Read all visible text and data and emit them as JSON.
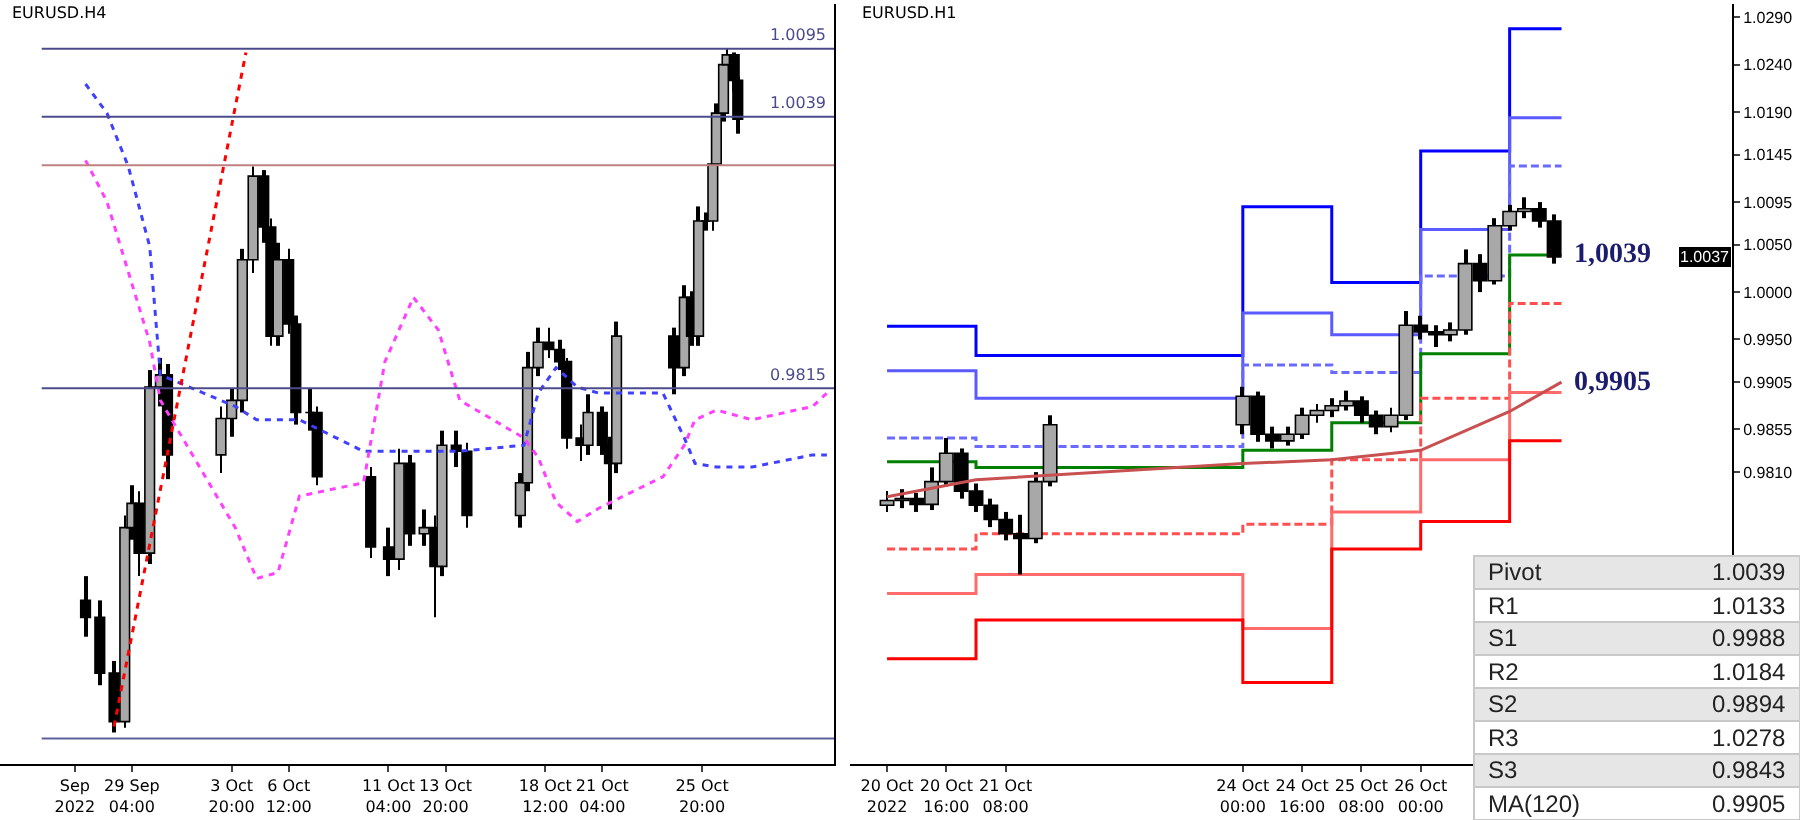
{
  "chart_data": [
    {
      "type": "candlestick",
      "title": "EURUSD.H4",
      "tick_labels": "x",
      "x": [
        "2022-09-27T00:00",
        "2022-09-27T16:00",
        "2022-09-28T08:00",
        "2022-09-28T20:00",
        "2022-09-29T04:00",
        "2022-09-29T12:00",
        "2022-09-30T00:00",
        "2022-09-30T12:00",
        "2022-09-30T20:00",
        "2022-10-03T08:00",
        "2022-10-03T20:00",
        "2022-10-04T08:00",
        "2022-10-04T20:00",
        "2022-10-05T08:00",
        "2022-10-05T16:00",
        "2022-10-06T00:00",
        "2022-10-06T12:00",
        "2022-10-06T20:00",
        "2022-10-07T12:00",
        "2022-10-07T20:00",
        "2022-10-10T08:00",
        "2022-10-11T04:00",
        "2022-10-11T16:00",
        "2022-10-12T04:00",
        "2022-10-12T20:00",
        "2022-10-13T08:00",
        "2022-10-13T16:00",
        "2022-10-14T08:00",
        "2022-10-14T20:00",
        "2022-10-17T08:00",
        "2022-10-17T16:00",
        "2022-10-18T04:00",
        "2022-10-18T16:00",
        "2022-10-19T04:00",
        "2022-10-19T12:00",
        "2022-10-20T04:00",
        "2022-10-20T12:00",
        "2022-10-21T04:00",
        "2022-10-21T12:00",
        "2022-10-21T20:00",
        "2022-10-24T12:00",
        "2022-10-25T00:00",
        "2022-10-25T08:00",
        "2022-10-25T16:00",
        "2022-10-26T00:00",
        "2022-10-26T08:00",
        "2022-10-26T12:00",
        "2022-10-26T20:00",
        "2022-10-27T00:00",
        "2022-10-27T08:00",
        "2022-10-27T12:00"
      ],
      "ohlc": [
        [
          0.964,
          0.966,
          0.961,
          0.9626
        ],
        [
          0.9626,
          0.964,
          0.957,
          0.958
        ],
        [
          0.958,
          0.959,
          0.9531,
          0.954
        ],
        [
          0.954,
          0.971,
          0.9535,
          0.97
        ],
        [
          0.97,
          0.9735,
          0.969,
          0.972
        ],
        [
          0.972,
          0.973,
          0.966,
          0.9679
        ],
        [
          0.9679,
          0.983,
          0.967,
          0.9816
        ],
        [
          0.9816,
          0.984,
          0.98,
          0.9826
        ],
        [
          0.9826,
          0.9835,
          0.974,
          0.976
        ],
        [
          0.976,
          0.98,
          0.9745,
          0.979
        ],
        [
          0.979,
          0.9815,
          0.9775,
          0.9805
        ],
        [
          0.9805,
          0.993,
          0.9795,
          0.9921
        ],
        [
          0.9921,
          0.9998,
          0.991,
          0.999
        ],
        [
          0.999,
          0.9995,
          0.9935,
          0.9948
        ],
        [
          0.9948,
          0.9955,
          0.985,
          0.9858
        ],
        [
          0.9858,
          0.9935,
          0.985,
          0.9921
        ],
        [
          0.9921,
          0.993,
          0.986,
          0.9868
        ],
        [
          0.9868,
          0.9875,
          0.9785,
          0.9795
        ],
        [
          0.9795,
          0.9815,
          0.978,
          0.9795
        ],
        [
          0.9795,
          0.98,
          0.9735,
          0.9742
        ],
        [
          0.9742,
          0.975,
          0.9675,
          0.9684
        ],
        [
          0.9684,
          0.97,
          0.966,
          0.9674
        ],
        [
          0.9674,
          0.9765,
          0.9665,
          0.9753
        ],
        [
          0.9753,
          0.976,
          0.9685,
          0.9695
        ],
        [
          0.9695,
          0.9715,
          0.9685,
          0.97
        ],
        [
          0.97,
          0.971,
          0.9626,
          0.9668
        ],
        [
          0.9668,
          0.978,
          0.966,
          0.9768
        ],
        [
          0.9768,
          0.978,
          0.975,
          0.9763
        ],
        [
          0.9763,
          0.977,
          0.97,
          0.971
        ],
        [
          0.971,
          0.9745,
          0.97,
          0.9737
        ],
        [
          0.9737,
          0.9845,
          0.973,
          0.9832
        ],
        [
          0.9832,
          0.9865,
          0.9825,
          0.9853
        ],
        [
          0.9853,
          0.9865,
          0.984,
          0.9847
        ],
        [
          0.9847,
          0.9855,
          0.983,
          0.9837
        ],
        [
          0.9837,
          0.984,
          0.9765,
          0.9774
        ],
        [
          0.9774,
          0.9785,
          0.9755,
          0.9768
        ],
        [
          0.9768,
          0.981,
          0.976,
          0.9795
        ],
        [
          0.9795,
          0.98,
          0.976,
          0.9768
        ],
        [
          0.9768,
          0.9775,
          0.9715,
          0.9753
        ],
        [
          0.9753,
          0.987,
          0.9745,
          0.9858
        ],
        [
          0.9858,
          0.9865,
          0.981,
          0.9832
        ],
        [
          0.9832,
          0.99,
          0.9825,
          0.989
        ],
        [
          0.989,
          0.9895,
          0.985,
          0.9858
        ],
        [
          0.9858,
          0.9965,
          0.985,
          0.9953
        ],
        [
          0.9953,
          0.996,
          0.9945,
          0.9953
        ],
        [
          0.9953,
          1.001,
          0.9945,
          1.0
        ],
        [
          1.0,
          1.005,
          0.9995,
          1.0042
        ],
        [
          1.0042,
          1.0088,
          1.0035,
          1.0082
        ],
        [
          1.0082,
          1.0095,
          1.0075,
          1.009
        ],
        [
          1.009,
          1.0092,
          1.006,
          1.0069
        ],
        [
          1.0069,
          1.0072,
          1.0025,
          1.0037
        ]
      ],
      "series": [
        {
          "type": "line",
          "color": "#4040ff",
          "line_style": "dotted",
          "x": [
            "2022-09-27T00:00",
            "2022-09-28T00:00",
            "2022-09-29T00:00",
            "2022-09-30T00:00",
            "2022-09-30T12:00",
            "2022-10-04T00:00",
            "2022-10-05T00:00",
            "2022-10-06T00:00",
            "2022-10-07T00:00",
            "2022-10-10T00:00",
            "2022-10-11T00:00",
            "2022-10-12T08:00",
            "2022-10-13T12:00",
            "2022-10-14T12:00",
            "2022-10-17T12:00",
            "2022-10-18T04:00",
            "2022-10-19T00:00",
            "2022-10-20T00:00",
            "2022-10-21T00:00",
            "2022-10-24T00:00",
            "2022-10-25T00:00",
            "2022-10-25T12:00",
            "2022-10-26T12:00",
            "2022-10-28T04:00",
            "2022-10-31T00:00",
            "2022-10-31T16:00"
          ],
          "values": [
            1.0066,
            1.0042,
            0.9998,
            0.9932,
            0.9826,
            0.98,
            0.9789,
            0.9789,
            0.9789,
            0.9763,
            0.9763,
            0.9763,
            0.9763,
            0.9763,
            0.9768,
            0.9811,
            0.9832,
            0.9816,
            0.9811,
            0.9811,
            0.9774,
            0.9753,
            0.975,
            0.975,
            0.976,
            0.976
          ]
        },
        {
          "type": "line",
          "color": "#ff40ff",
          "line_style": "dotted",
          "x": [
            "2022-09-27T00:00",
            "2022-09-28T00:00",
            "2022-09-29T00:00",
            "2022-09-30T00:00",
            "2022-09-30T12:00",
            "2022-10-04T00:00",
            "2022-10-05T00:00",
            "2022-10-06T00:00",
            "2022-10-07T00:00",
            "2022-10-10T00:00",
            "2022-10-11T00:00",
            "2022-10-12T08:00",
            "2022-10-13T12:00",
            "2022-10-14T12:00",
            "2022-10-17T12:00",
            "2022-10-18T04:00",
            "2022-10-19T00:00",
            "2022-10-20T00:00",
            "2022-10-21T00:00",
            "2022-10-24T00:00",
            "2022-10-25T00:00",
            "2022-10-25T12:00",
            "2022-10-26T12:00",
            "2022-10-28T04:00",
            "2022-10-31T00:00",
            "2022-10-31T16:00"
          ],
          "values": [
            1.0003,
            0.9969,
            0.9911,
            0.9853,
            0.9805,
            0.97,
            0.9658,
            0.9663,
            0.9726,
            0.9737,
            0.9837,
            0.989,
            0.9863,
            0.9805,
            0.9774,
            0.9758,
            0.9721,
            0.9705,
            0.9716,
            0.9742,
            0.9768,
            0.9789,
            0.9797,
            0.9789,
            0.98,
            0.9811
          ]
        },
        {
          "type": "line",
          "color": "#ff0000",
          "line_style": "dotted",
          "x": [
            "2022-09-28T08:00",
            "2022-10-04T12:00"
          ],
          "values": [
            0.9536,
            1.0092
          ]
        }
      ],
      "xlim": [
        "2022-09-23T00:00",
        "2022-11-01T00:00"
      ],
      "ylim": [
        0.9505,
        1.0132
      ],
      "xticks": [
        {
          "value": "2022-09-26T12:00",
          "label": "Sep 2022"
        },
        {
          "value": "2022-09-29T04:00",
          "label": "29 Sep 04:00"
        },
        {
          "value": "2022-10-03T20:00",
          "label": "3 Oct 20:00"
        },
        {
          "value": "2022-10-06T12:00",
          "label": "6 Oct 12:00"
        },
        {
          "value": "2022-10-11T04:00",
          "label": "11 Oct 04:00"
        },
        {
          "value": "2022-10-13T20:00",
          "label": "13 Oct 20:00"
        },
        {
          "value": "2022-10-18T12:00",
          "label": "18 Oct 12:00"
        },
        {
          "value": "2022-10-21T04:00",
          "label": "21 Oct 04:00"
        },
        {
          "value": "2022-10-25T20:00",
          "label": "25 Oct 20:00"
        }
      ],
      "ref_lines": [
        {
          "axis": "y",
          "value": 1.0095,
          "label": "1.0095",
          "color": "#4b4b8c"
        },
        {
          "axis": "y",
          "value": 1.0039,
          "label": "1.0039",
          "color": "#4b4b8c"
        },
        {
          "axis": "y",
          "value": 0.9815,
          "label": "0.9815",
          "color": "#4b4b8c"
        },
        {
          "axis": "y",
          "value": 0.9999,
          "color": "#c08080"
        },
        {
          "axis": "y",
          "value": 0.9526,
          "color": "#6060a0"
        }
      ]
    },
    {
      "type": "candlestick",
      "title": "EURUSD.H1",
      "x": [
        "2022-10-20T00:00",
        "2022-10-20T04:00",
        "2022-10-20T08:00",
        "2022-10-20T12:00",
        "2022-10-20T16:00",
        "2022-10-20T20:00",
        "2022-10-21T00:00",
        "2022-10-21T04:00",
        "2022-10-21T08:00",
        "2022-10-21T12:00",
        "2022-10-21T16:00",
        "2022-10-21T20:00",
        "2022-10-24T00:00",
        "2022-10-24T04:00",
        "2022-10-24T08:00",
        "2022-10-24T12:00",
        "2022-10-24T16:00",
        "2022-10-24T20:00",
        "2022-10-25T00:00",
        "2022-10-25T04:00",
        "2022-10-25T08:00",
        "2022-10-25T12:00",
        "2022-10-25T16:00",
        "2022-10-25T20:00",
        "2022-10-26T00:00",
        "2022-10-26T04:00",
        "2022-10-26T08:00",
        "2022-10-26T12:00",
        "2022-10-26T16:00",
        "2022-10-26T20:00",
        "2022-10-27T00:00",
        "2022-10-27T04:00",
        "2022-10-27T08:00",
        "2022-10-27T12:00"
      ],
      "ohlc": [
        [
          0.9775,
          0.979,
          0.9768,
          0.978
        ],
        [
          0.978,
          0.9792,
          0.9772,
          0.9782
        ],
        [
          0.9782,
          0.9788,
          0.9768,
          0.9776
        ],
        [
          0.9776,
          0.9815,
          0.977,
          0.98
        ],
        [
          0.98,
          0.9846,
          0.9795,
          0.983
        ],
        [
          0.983,
          0.9835,
          0.9782,
          0.979
        ],
        [
          0.979,
          0.9798,
          0.9768,
          0.9775
        ],
        [
          0.9775,
          0.9782,
          0.9752,
          0.976
        ],
        [
          0.976,
          0.9768,
          0.9738,
          0.9745
        ],
        [
          0.9745,
          0.9765,
          0.9702,
          0.974
        ],
        [
          0.974,
          0.981,
          0.9735,
          0.98
        ],
        [
          0.98,
          0.987,
          0.9795,
          0.986
        ],
        [
          0.986,
          0.99,
          0.985,
          0.989
        ],
        [
          0.989,
          0.9895,
          0.9842,
          0.985
        ],
        [
          0.985,
          0.9858,
          0.9835,
          0.9843
        ],
        [
          0.9843,
          0.9858,
          0.9838,
          0.985
        ],
        [
          0.985,
          0.9878,
          0.9845,
          0.987
        ],
        [
          0.987,
          0.9882,
          0.9862,
          0.9875
        ],
        [
          0.9875,
          0.9888,
          0.9868,
          0.988
        ],
        [
          0.988,
          0.9896,
          0.9875,
          0.9885
        ],
        [
          0.9885,
          0.989,
          0.9862,
          0.987
        ],
        [
          0.987,
          0.9875,
          0.985,
          0.9858
        ],
        [
          0.9858,
          0.9878,
          0.9852,
          0.987
        ],
        [
          0.987,
          0.998,
          0.9865,
          0.9965
        ],
        [
          0.9965,
          0.9975,
          0.995,
          0.9958
        ],
        [
          0.9958,
          0.9965,
          0.9942,
          0.9955
        ],
        [
          0.9955,
          0.9968,
          0.9948,
          0.996
        ],
        [
          0.996,
          1.0045,
          0.9955,
          1.003
        ],
        [
          1.003,
          1.004,
          1.0,
          1.0012
        ],
        [
          1.0012,
          1.0078,
          1.0008,
          1.007
        ],
        [
          1.007,
          1.0092,
          1.0065,
          1.0085
        ],
        [
          1.0085,
          1.01,
          1.0078,
          1.0088
        ],
        [
          1.0088,
          1.0095,
          1.0068,
          1.0075
        ],
        [
          1.0075,
          1.0082,
          1.003,
          1.0037
        ]
      ],
      "series": [
        {
          "type": "step",
          "color": "#0000ff",
          "line_style": "solid",
          "x": [
            "2022-10-20T00:00",
            "2022-10-21T00:00",
            "2022-10-24T00:00",
            "2022-10-25T00:00",
            "2022-10-26T00:00",
            "2022-10-27T00:00",
            "2022-10-27T14:00"
          ],
          "values": [
            0.9964,
            0.9933,
            1.009,
            1.001,
            1.0149,
            1.0278,
            1.0278
          ]
        },
        {
          "type": "step",
          "color": "#5a5aff",
          "line_style": "solid",
          "x": [
            "2022-10-20T00:00",
            "2022-10-21T00:00",
            "2022-10-24T00:00",
            "2022-10-25T00:00",
            "2022-10-26T00:00",
            "2022-10-27T00:00",
            "2022-10-27T14:00"
          ],
          "values": [
            0.9917,
            0.9888,
            0.9978,
            0.9955,
            1.0066,
            1.0184,
            1.0184
          ]
        },
        {
          "type": "step",
          "color": "#6a6aff",
          "line_style": "dashed",
          "x": [
            "2022-10-20T00:00",
            "2022-10-21T00:00",
            "2022-10-24T00:00",
            "2022-10-25T00:00",
            "2022-10-26T00:00",
            "2022-10-27T00:00",
            "2022-10-27T14:00"
          ],
          "values": [
            0.9846,
            0.9837,
            0.9923,
            0.9915,
            1.0017,
            1.0133,
            1.0133
          ]
        },
        {
          "type": "step",
          "color": "#008000",
          "line_style": "solid",
          "x": [
            "2022-10-20T00:00",
            "2022-10-21T00:00",
            "2022-10-24T00:00",
            "2022-10-25T00:00",
            "2022-10-26T00:00",
            "2022-10-27T00:00",
            "2022-10-27T14:00"
          ],
          "values": [
            0.9821,
            0.9815,
            0.9833,
            0.9862,
            0.9935,
            1.0039,
            1.0039
          ]
        },
        {
          "type": "step",
          "color": "#ff5050",
          "line_style": "dashed",
          "x": [
            "2022-10-20T00:00",
            "2022-10-21T00:00",
            "2022-10-24T00:00",
            "2022-10-25T00:00",
            "2022-10-26T00:00",
            "2022-10-27T00:00",
            "2022-10-27T14:00"
          ],
          "values": [
            0.9729,
            0.9745,
            0.9755,
            0.9823,
            0.9888,
            0.9988,
            0.9988
          ]
        },
        {
          "type": "step",
          "color": "#ff6a6a",
          "line_style": "solid",
          "x": [
            "2022-10-20T00:00",
            "2022-10-21T00:00",
            "2022-10-24T00:00",
            "2022-10-25T00:00",
            "2022-10-26T00:00",
            "2022-10-27T00:00",
            "2022-10-27T14:00"
          ],
          "values": [
            0.9682,
            0.9702,
            0.9645,
            0.9768,
            0.9823,
            0.9894,
            0.9894
          ]
        },
        {
          "type": "step",
          "color": "#ff0000",
          "line_style": "solid",
          "x": [
            "2022-10-20T00:00",
            "2022-10-21T00:00",
            "2022-10-24T00:00",
            "2022-10-25T00:00",
            "2022-10-26T00:00",
            "2022-10-27T00:00",
            "2022-10-27T14:00"
          ],
          "values": [
            0.9613,
            0.9654,
            0.9588,
            0.9729,
            0.9758,
            0.9843,
            0.9843
          ]
        },
        {
          "type": "line",
          "color": "#c85050",
          "line_style": "solid",
          "x": [
            "2022-10-20T00:00",
            "2022-10-21T00:00",
            "2022-10-24T00:00",
            "2022-10-25T00:00",
            "2022-10-26T00:00",
            "2022-10-27T00:00",
            "2022-10-27T14:00"
          ],
          "values": [
            0.9784,
            0.9802,
            0.9819,
            0.9823,
            0.9833,
            0.9874,
            0.9905
          ]
        }
      ],
      "xlim": [
        "2022-10-19T14:00",
        "2022-10-29T12:00"
      ],
      "ylim": [
        0.9502,
        1.0304
      ],
      "xticks": [
        {
          "value": "2022-10-20T00:00",
          "label": "20 Oct 2022"
        },
        {
          "value": "2022-10-20T16:00",
          "label": "20 Oct 16:00"
        },
        {
          "value": "2022-10-21T08:00",
          "label": "21 Oct 08:00"
        },
        {
          "value": "2022-10-24T00:00",
          "label": "24 Oct 00:00"
        },
        {
          "value": "2022-10-24T16:00",
          "label": "24 Oct 16:00"
        },
        {
          "value": "2022-10-25T08:00",
          "label": "25 Oct 08:00"
        },
        {
          "value": "2022-10-26T00:00",
          "label": "26 Oct 00:00"
        }
      ],
      "yticks": [
        {
          "value": 1.029,
          "label": "1.0290"
        },
        {
          "value": 1.024,
          "label": "1.0240"
        },
        {
          "value": 1.019,
          "label": "1.0190"
        },
        1.0145,
        1.0095,
        {
          "value": 1.005,
          "label": "1.0050"
        },
        {
          "value": 1.0,
          "label": "1.0000"
        },
        {
          "value": 0.995,
          "label": "0.9950"
        },
        0.9905,
        0.9855,
        {
          "value": 0.981,
          "label": "0.9810"
        }
      ],
      "annotations": [
        {
          "text": "1,0039",
          "x": "2022-10-27T14:00",
          "y": 1.0039
        },
        {
          "text": "0,9905",
          "x": "2022-10-27T14:00",
          "y": 0.9905
        },
        {
          "text": "1.0037",
          "y": 1.0037
        },
        "Pivot",
        "1.0039",
        "R1",
        "1.0133",
        "S1",
        "0.9988",
        "R2",
        "1.0184",
        "S2",
        "0.9894",
        "R3",
        "1.0278",
        "S3",
        "0.9843",
        "MA(120)",
        "0.9905"
      ]
    }
  ]
}
